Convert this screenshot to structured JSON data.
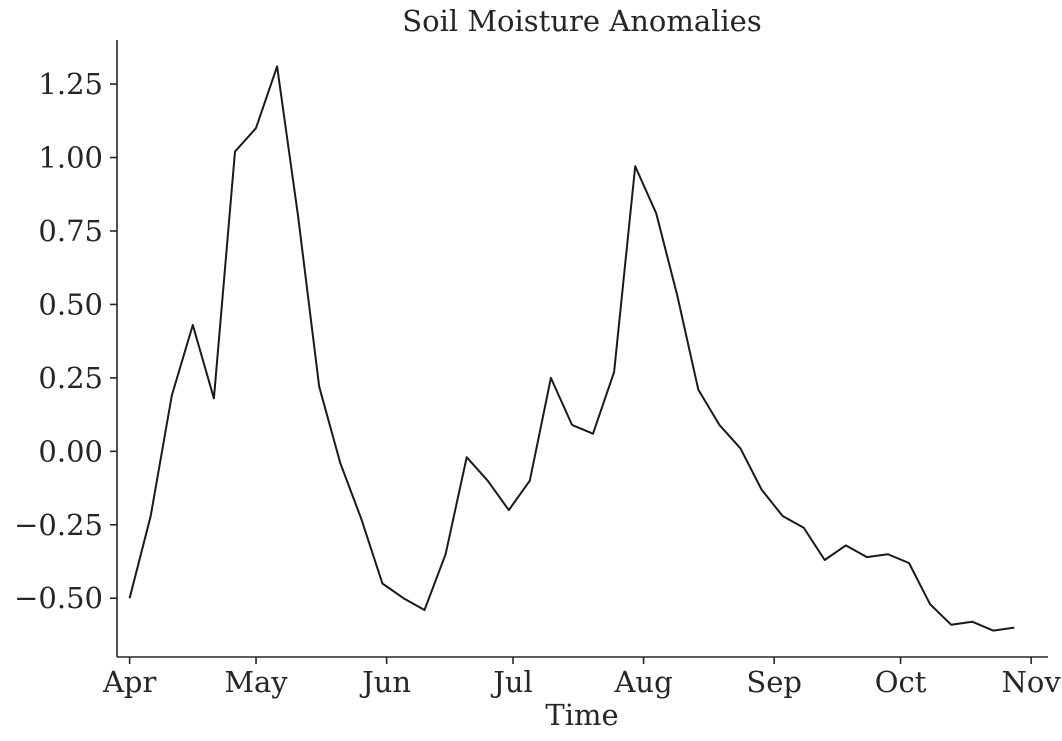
{
  "chart_data": {
    "type": "line",
    "title": "Soil Moisture Anomalies",
    "xlabel": "Time",
    "ylabel": "",
    "grid": false,
    "x_tick_labels": [
      "Apr",
      "May",
      "Jun",
      "Jul",
      "Aug",
      "Sep",
      "Oct",
      "Nov"
    ],
    "y_ticks": [
      "−0.50",
      "−0.25",
      "0.00",
      "0.25",
      "0.50",
      "0.75",
      "1.00",
      "1.25"
    ],
    "xlim": [
      "2023-03-29",
      "2023-11-05"
    ],
    "ylim": [
      -0.7,
      1.4
    ],
    "series": [
      {
        "color": "#1a1a1a",
        "x": [
          "2023-04-01",
          "2023-04-06",
          "2023-04-11",
          "2023-04-16",
          "2023-04-21",
          "2023-04-26",
          "2023-05-01",
          "2023-05-06",
          "2023-05-11",
          "2023-05-16",
          "2023-05-21",
          "2023-05-26",
          "2023-05-31",
          "2023-06-05",
          "2023-06-10",
          "2023-06-15",
          "2023-06-20",
          "2023-06-25",
          "2023-06-30",
          "2023-07-05",
          "2023-07-10",
          "2023-07-15",
          "2023-07-20",
          "2023-07-25",
          "2023-07-30",
          "2023-08-04",
          "2023-08-09",
          "2023-08-14",
          "2023-08-19",
          "2023-08-24",
          "2023-08-29",
          "2023-09-03",
          "2023-09-08",
          "2023-09-13",
          "2023-09-18",
          "2023-09-23",
          "2023-09-28",
          "2023-10-03",
          "2023-10-08",
          "2023-10-13",
          "2023-10-18",
          "2023-10-23",
          "2023-10-28"
        ],
        "values": [
          -0.5,
          -0.22,
          0.19,
          0.43,
          0.18,
          1.02,
          1.1,
          1.31,
          0.8,
          0.22,
          -0.04,
          -0.23,
          -0.45,
          -0.5,
          -0.54,
          -0.35,
          -0.02,
          -0.1,
          -0.2,
          -0.1,
          0.25,
          0.09,
          0.06,
          0.27,
          0.97,
          0.81,
          0.53,
          0.21,
          0.09,
          0.01,
          -0.13,
          -0.22,
          -0.26,
          -0.37,
          -0.32,
          -0.36,
          -0.35,
          -0.38,
          -0.52,
          -0.59,
          -0.58,
          -0.61,
          -0.6
        ]
      }
    ]
  }
}
